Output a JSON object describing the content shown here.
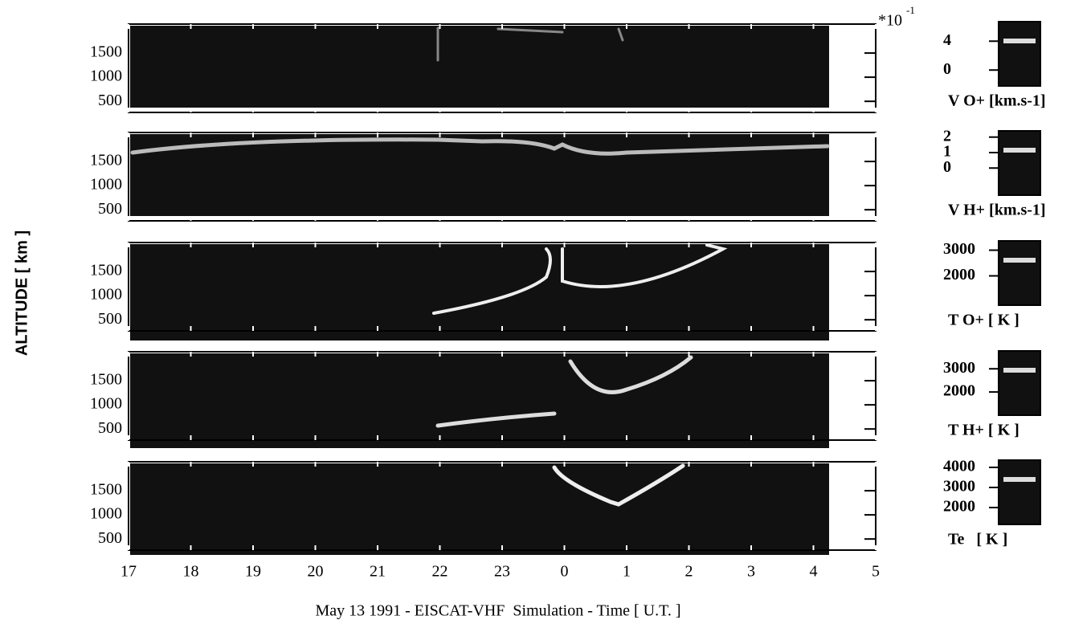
{
  "chart_data": [
    {
      "type": "heatmap",
      "ylim": [
        270,
        2100
      ],
      "yticks": [
        500,
        1000,
        1500
      ],
      "colorbar": {
        "label": "V O+ [km.s-1]",
        "multiplier": "*10",
        "exponent": "-1",
        "ylim": [
          -2.2,
          6.7
        ],
        "yticks": [
          0,
          4
        ]
      }
    },
    {
      "type": "heatmap",
      "ylim": [
        270,
        2100
      ],
      "yticks": [
        500,
        1000,
        1500
      ],
      "colorbar": {
        "label": "V H+ [km.s-1]",
        "ylim": [
          -1.75,
          2.4
        ],
        "yticks": [
          0,
          1,
          2
        ]
      }
    },
    {
      "type": "heatmap",
      "ylim": [
        270,
        2100
      ],
      "yticks": [
        500,
        1000,
        1500
      ],
      "colorbar": {
        "label": "T O+ [ K ]",
        "ylim": [
          860,
          3360
        ],
        "yticks": [
          2000,
          3000
        ]
      }
    },
    {
      "type": "heatmap",
      "ylim": [
        270,
        2100
      ],
      "yticks": [
        500,
        1000,
        1500
      ],
      "colorbar": {
        "label": "T H+ [ K ]",
        "ylim": [
          1000,
          3770
        ],
        "yticks": [
          2000,
          3000
        ]
      }
    },
    {
      "type": "heatmap",
      "ylim": [
        270,
        2100
      ],
      "yticks": [
        500,
        1000,
        1500
      ],
      "ylabel": "ALTITUDE [ km ]",
      "xlabel": "May 13 1991 - EISCAT-VHF  Simulation - Time [ U.T. ]",
      "xlim": [
        17,
        29
      ],
      "xticks": [
        17,
        18,
        19,
        20,
        21,
        22,
        23,
        {
          "value": 24,
          "label": "0"
        },
        {
          "value": 25,
          "label": "1"
        },
        {
          "value": 26,
          "label": "2"
        },
        {
          "value": 27,
          "label": "3"
        },
        {
          "value": 28,
          "label": "4"
        },
        {
          "value": 29,
          "label": "5"
        }
      ],
      "colorbar": {
        "label": "Te   [ K ]",
        "ylim": [
          1160,
          4360
        ],
        "yticks": [
          2000,
          3000,
          4000
        ]
      }
    }
  ]
}
